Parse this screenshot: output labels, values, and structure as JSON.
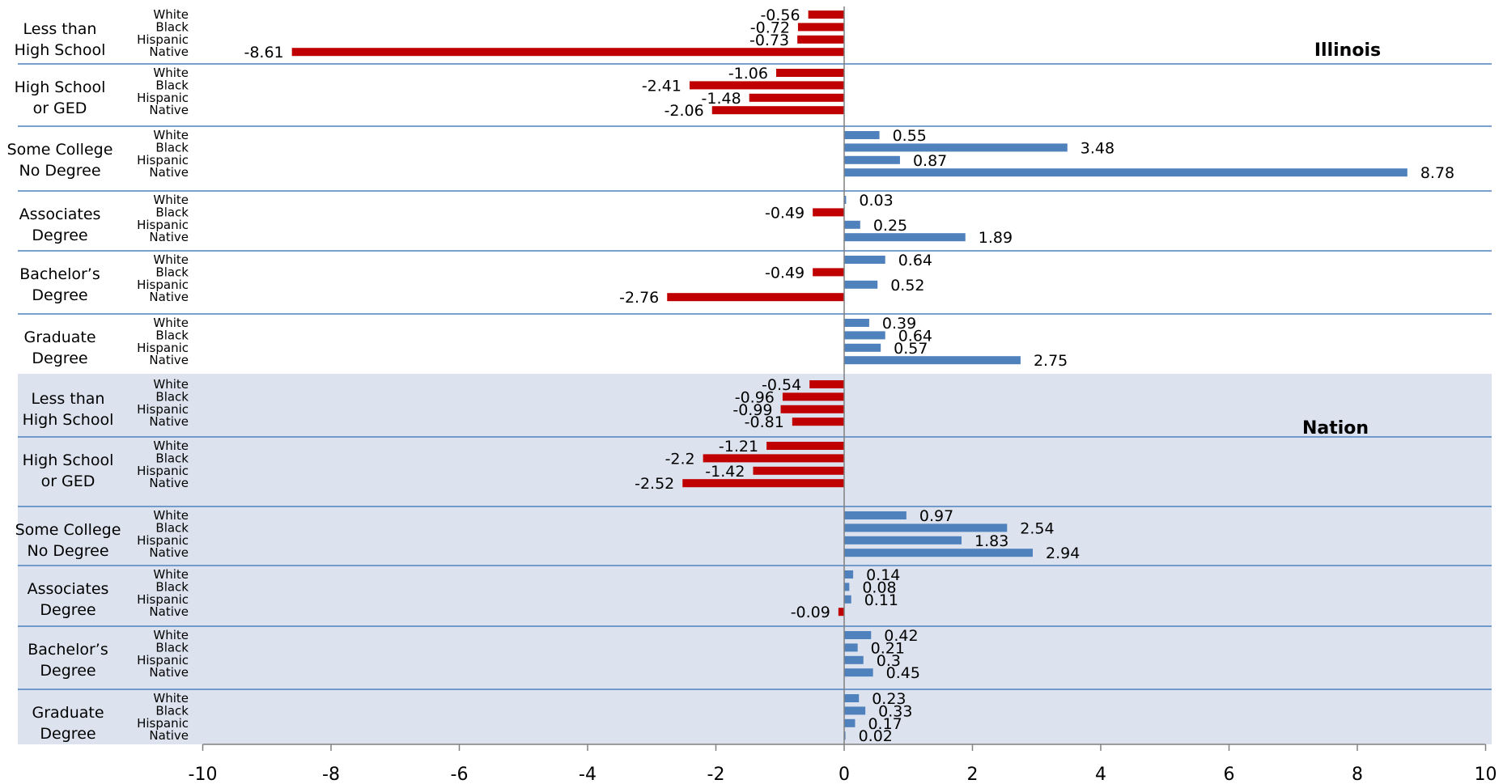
{
  "chart_data": {
    "type": "bar",
    "orientation": "horizontal",
    "colors": {
      "negative": "#C00000",
      "positive": "#4F81BD",
      "nation_background": "#DCE3EF",
      "separator": "#4F81BD"
    },
    "race_labels": [
      "White",
      "Black",
      "Hispanic",
      "Native"
    ],
    "xlim": [
      -10,
      10
    ],
    "xticks": [
      "-10",
      "-8",
      "-6",
      "-4",
      "-2",
      "0",
      "2",
      "4",
      "6",
      "8",
      "10"
    ],
    "grid": false,
    "panels": [
      {
        "title": "Illinois",
        "groups": [
          {
            "label_lines": [
              "Less than",
              "High School"
            ],
            "values": [
              -0.56,
              -0.72,
              -0.73,
              -8.61
            ]
          },
          {
            "label_lines": [
              "High School",
              "or GED"
            ],
            "values": [
              -1.06,
              -2.41,
              -1.48,
              -2.06
            ]
          },
          {
            "label_lines": [
              "Some College",
              "No Degree"
            ],
            "values": [
              0.55,
              3.48,
              0.87,
              8.78
            ]
          },
          {
            "label_lines": [
              "Associates",
              "Degree"
            ],
            "values": [
              0.03,
              -0.49,
              0.25,
              1.89
            ]
          },
          {
            "label_lines": [
              "Bachelor’s",
              "Degree"
            ],
            "values": [
              0.64,
              -0.49,
              0.52,
              -2.76
            ]
          },
          {
            "label_lines": [
              "Graduate",
              "Degree"
            ],
            "values": [
              0.39,
              0.64,
              0.57,
              2.75
            ]
          }
        ]
      },
      {
        "title": "Nation",
        "groups": [
          {
            "label_lines": [
              "Less than",
              "High School"
            ],
            "values": [
              -0.54,
              -0.96,
              -0.99,
              -0.81
            ]
          },
          {
            "label_lines": [
              "High School",
              "or GED"
            ],
            "values": [
              -1.21,
              -2.2,
              -1.42,
              -2.52
            ]
          },
          {
            "label_lines": [
              "Some College",
              "No Degree"
            ],
            "values": [
              0.97,
              2.54,
              1.83,
              2.94
            ]
          },
          {
            "label_lines": [
              "Associates",
              "Degree"
            ],
            "values": [
              0.14,
              0.08,
              0.11,
              -0.09
            ]
          },
          {
            "label_lines": [
              "Bachelor’s",
              "Degree"
            ],
            "values": [
              0.42,
              0.21,
              0.3,
              0.45
            ]
          },
          {
            "label_lines": [
              "Graduate",
              "Degree"
            ],
            "values": [
              0.23,
              0.33,
              0.17,
              0.02
            ]
          }
        ]
      }
    ]
  }
}
